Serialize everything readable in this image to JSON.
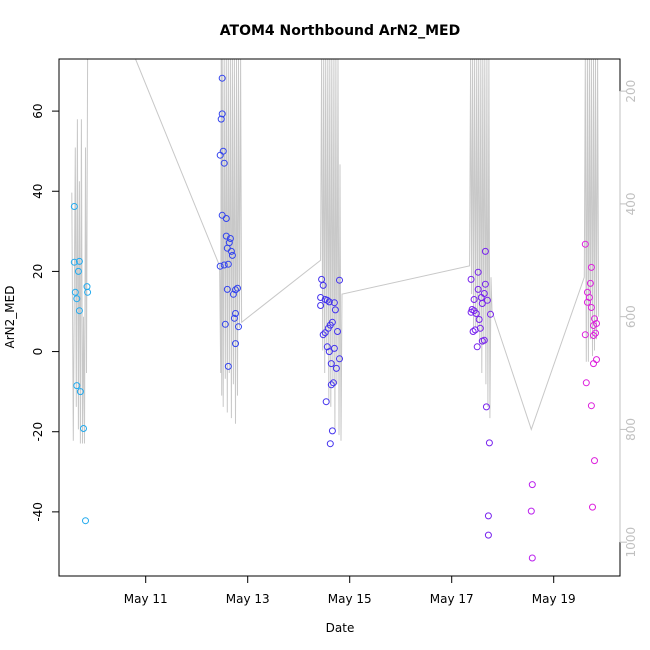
{
  "chart_data": {
    "type": "scatter",
    "title": "ATOM4 Northbound ArN2_MED",
    "xlabel": "Date",
    "ylabel": "ArN2_MED",
    "xlim": [
      9.3,
      20.3
    ],
    "ylim": [
      -56,
      73
    ],
    "y_ticks": [
      -40,
      -20,
      0,
      20,
      40,
      60
    ],
    "x_ticks": [
      {
        "value": 11,
        "label": "May 11"
      },
      {
        "value": 13,
        "label": "May 13"
      },
      {
        "value": 15,
        "label": "May 15"
      },
      {
        "value": 17,
        "label": "May 17"
      },
      {
        "value": 19,
        "label": "May 19"
      }
    ],
    "secondary_axis": {
      "side": "right",
      "color": "#c0c0c0",
      "ylim": [
        1060,
        143
      ],
      "ticks": [
        200,
        400,
        600,
        800,
        1000
      ],
      "series_color": "#c8c8c8"
    },
    "points": [
      {
        "x": 9.6,
        "y": 36.2,
        "color": "#22aaee"
      },
      {
        "x": 9.6,
        "y": 22.3,
        "color": "#22aaee"
      },
      {
        "x": 9.62,
        "y": 14.8,
        "color": "#22aaee"
      },
      {
        "x": 9.65,
        "y": 13.2,
        "color": "#22aaee"
      },
      {
        "x": 9.68,
        "y": 20.0,
        "color": "#22aaee"
      },
      {
        "x": 9.7,
        "y": 22.5,
        "color": "#22aaee"
      },
      {
        "x": 9.7,
        "y": 10.2,
        "color": "#22aaee"
      },
      {
        "x": 9.65,
        "y": -8.5,
        "color": "#22aaee"
      },
      {
        "x": 9.72,
        "y": -10.0,
        "color": "#22aaee"
      },
      {
        "x": 9.78,
        "y": -19.2,
        "color": "#22aaee"
      },
      {
        "x": 9.85,
        "y": 16.2,
        "color": "#22aaee"
      },
      {
        "x": 9.86,
        "y": 14.8,
        "color": "#22aaee"
      },
      {
        "x": 9.82,
        "y": -42.2,
        "color": "#22aaee"
      },
      {
        "x": 12.5,
        "y": 68.2,
        "color": "#3344ee"
      },
      {
        "x": 12.5,
        "y": 59.3,
        "color": "#3344ee"
      },
      {
        "x": 12.48,
        "y": 58.0,
        "color": "#3344ee"
      },
      {
        "x": 12.52,
        "y": 50.0,
        "color": "#3344ee"
      },
      {
        "x": 12.46,
        "y": 49.0,
        "color": "#3344ee"
      },
      {
        "x": 12.54,
        "y": 47.0,
        "color": "#3344ee"
      },
      {
        "x": 12.5,
        "y": 34.0,
        "color": "#3344ee"
      },
      {
        "x": 12.58,
        "y": 33.2,
        "color": "#3344ee"
      },
      {
        "x": 12.58,
        "y": 28.8,
        "color": "#3344ee"
      },
      {
        "x": 12.66,
        "y": 28.2,
        "color": "#3344ee"
      },
      {
        "x": 12.64,
        "y": 27.2,
        "color": "#3344ee"
      },
      {
        "x": 12.6,
        "y": 25.8,
        "color": "#3344ee"
      },
      {
        "x": 12.68,
        "y": 25.0,
        "color": "#3344ee"
      },
      {
        "x": 12.7,
        "y": 24.0,
        "color": "#3344ee"
      },
      {
        "x": 12.46,
        "y": 21.3,
        "color": "#3344ee"
      },
      {
        "x": 12.54,
        "y": 21.6,
        "color": "#3344ee"
      },
      {
        "x": 12.62,
        "y": 21.8,
        "color": "#3344ee"
      },
      {
        "x": 12.6,
        "y": 15.5,
        "color": "#3344ee"
      },
      {
        "x": 12.76,
        "y": 15.4,
        "color": "#3344ee"
      },
      {
        "x": 12.8,
        "y": 15.8,
        "color": "#3344ee"
      },
      {
        "x": 12.72,
        "y": 14.3,
        "color": "#3344ee"
      },
      {
        "x": 12.76,
        "y": 9.5,
        "color": "#3344ee"
      },
      {
        "x": 12.74,
        "y": 8.3,
        "color": "#3344ee"
      },
      {
        "x": 12.56,
        "y": 6.8,
        "color": "#3344ee"
      },
      {
        "x": 12.82,
        "y": 6.2,
        "color": "#3344ee"
      },
      {
        "x": 12.76,
        "y": 2.0,
        "color": "#3344ee"
      },
      {
        "x": 12.62,
        "y": -3.7,
        "color": "#3344ee"
      },
      {
        "x": 14.45,
        "y": 18.0,
        "color": "#4433ee"
      },
      {
        "x": 14.48,
        "y": 16.5,
        "color": "#4433ee"
      },
      {
        "x": 14.8,
        "y": 17.8,
        "color": "#4433ee"
      },
      {
        "x": 14.43,
        "y": 13.5,
        "color": "#4433ee"
      },
      {
        "x": 14.52,
        "y": 13.0,
        "color": "#4433ee"
      },
      {
        "x": 14.56,
        "y": 12.8,
        "color": "#4433ee"
      },
      {
        "x": 14.6,
        "y": 12.4,
        "color": "#4433ee"
      },
      {
        "x": 14.7,
        "y": 12.2,
        "color": "#4433ee"
      },
      {
        "x": 14.43,
        "y": 11.5,
        "color": "#4433ee"
      },
      {
        "x": 14.72,
        "y": 10.4,
        "color": "#4433ee"
      },
      {
        "x": 14.66,
        "y": 7.3,
        "color": "#4433ee"
      },
      {
        "x": 14.62,
        "y": 6.6,
        "color": "#4433ee"
      },
      {
        "x": 14.58,
        "y": 5.8,
        "color": "#4433ee"
      },
      {
        "x": 14.52,
        "y": 4.7,
        "color": "#4433ee"
      },
      {
        "x": 14.48,
        "y": 4.2,
        "color": "#4433ee"
      },
      {
        "x": 14.76,
        "y": 5.0,
        "color": "#4433ee"
      },
      {
        "x": 14.56,
        "y": 1.2,
        "color": "#4433ee"
      },
      {
        "x": 14.6,
        "y": 0.0,
        "color": "#4433ee"
      },
      {
        "x": 14.7,
        "y": 0.8,
        "color": "#4433ee"
      },
      {
        "x": 14.8,
        "y": -1.8,
        "color": "#4433ee"
      },
      {
        "x": 14.64,
        "y": -3.0,
        "color": "#4433ee"
      },
      {
        "x": 14.74,
        "y": -4.2,
        "color": "#4433ee"
      },
      {
        "x": 14.68,
        "y": -7.8,
        "color": "#4433ee"
      },
      {
        "x": 14.64,
        "y": -8.3,
        "color": "#4433ee"
      },
      {
        "x": 14.54,
        "y": -12.5,
        "color": "#4433ee"
      },
      {
        "x": 14.66,
        "y": -19.8,
        "color": "#4433ee"
      },
      {
        "x": 14.62,
        "y": -23.0,
        "color": "#4433ee"
      },
      {
        "x": 17.66,
        "y": 25.0,
        "color": "#7722ee"
      },
      {
        "x": 17.52,
        "y": 19.8,
        "color": "#7722ee"
      },
      {
        "x": 17.38,
        "y": 18.0,
        "color": "#7722ee"
      },
      {
        "x": 17.66,
        "y": 16.8,
        "color": "#7722ee"
      },
      {
        "x": 17.52,
        "y": 15.5,
        "color": "#7722ee"
      },
      {
        "x": 17.64,
        "y": 14.5,
        "color": "#7722ee"
      },
      {
        "x": 17.58,
        "y": 13.5,
        "color": "#7722ee"
      },
      {
        "x": 17.44,
        "y": 13.0,
        "color": "#7722ee"
      },
      {
        "x": 17.7,
        "y": 12.8,
        "color": "#7722ee"
      },
      {
        "x": 17.6,
        "y": 12.0,
        "color": "#7722ee"
      },
      {
        "x": 17.4,
        "y": 10.5,
        "color": "#7722ee"
      },
      {
        "x": 17.44,
        "y": 10.2,
        "color": "#7722ee"
      },
      {
        "x": 17.38,
        "y": 9.8,
        "color": "#7722ee"
      },
      {
        "x": 17.48,
        "y": 9.5,
        "color": "#7722ee"
      },
      {
        "x": 17.54,
        "y": 8.0,
        "color": "#7722ee"
      },
      {
        "x": 17.76,
        "y": 9.3,
        "color": "#7722ee"
      },
      {
        "x": 17.56,
        "y": 5.8,
        "color": "#7722ee"
      },
      {
        "x": 17.42,
        "y": 5.0,
        "color": "#7722ee"
      },
      {
        "x": 17.46,
        "y": 5.4,
        "color": "#7722ee"
      },
      {
        "x": 17.64,
        "y": 2.8,
        "color": "#7722ee"
      },
      {
        "x": 17.6,
        "y": 2.6,
        "color": "#7722ee"
      },
      {
        "x": 17.5,
        "y": 1.2,
        "color": "#7722ee"
      },
      {
        "x": 17.68,
        "y": -13.8,
        "color": "#7722ee"
      },
      {
        "x": 17.74,
        "y": -22.8,
        "color": "#7722ee"
      },
      {
        "x": 17.72,
        "y": -41.0,
        "color": "#7722ee"
      },
      {
        "x": 17.72,
        "y": -45.8,
        "color": "#7722ee"
      },
      {
        "x": 18.58,
        "y": -33.2,
        "color": "#bb22ee"
      },
      {
        "x": 18.56,
        "y": -39.8,
        "color": "#bb22ee"
      },
      {
        "x": 18.58,
        "y": -51.5,
        "color": "#bb22ee"
      },
      {
        "x": 19.62,
        "y": 26.8,
        "color": "#dd22dd"
      },
      {
        "x": 19.74,
        "y": 21.0,
        "color": "#dd22dd"
      },
      {
        "x": 19.72,
        "y": 17.0,
        "color": "#dd22dd"
      },
      {
        "x": 19.66,
        "y": 14.8,
        "color": "#dd22dd"
      },
      {
        "x": 19.7,
        "y": 13.5,
        "color": "#dd22dd"
      },
      {
        "x": 19.66,
        "y": 12.3,
        "color": "#dd22dd"
      },
      {
        "x": 19.74,
        "y": 11.0,
        "color": "#dd22dd"
      },
      {
        "x": 19.8,
        "y": 8.2,
        "color": "#dd22dd"
      },
      {
        "x": 19.84,
        "y": 7.0,
        "color": "#dd22dd"
      },
      {
        "x": 19.78,
        "y": 6.5,
        "color": "#dd22dd"
      },
      {
        "x": 19.82,
        "y": 4.6,
        "color": "#dd22dd"
      },
      {
        "x": 19.78,
        "y": 4.0,
        "color": "#dd22dd"
      },
      {
        "x": 19.62,
        "y": 4.2,
        "color": "#dd22dd"
      },
      {
        "x": 19.84,
        "y": -2.0,
        "color": "#dd22dd"
      },
      {
        "x": 19.78,
        "y": -3.0,
        "color": "#dd22dd"
      },
      {
        "x": 19.64,
        "y": -7.8,
        "color": "#dd22dd"
      },
      {
        "x": 19.74,
        "y": -13.5,
        "color": "#dd22dd"
      },
      {
        "x": 19.8,
        "y": -27.2,
        "color": "#dd22dd"
      },
      {
        "x": 19.76,
        "y": -38.8,
        "color": "#dd22dd"
      }
    ],
    "line_series": [
      [
        [
          9.55,
          380
        ],
        [
          9.58,
          820
        ],
        [
          9.62,
          300
        ],
        [
          9.64,
          760
        ],
        [
          9.66,
          250
        ],
        [
          9.68,
          800
        ],
        [
          9.7,
          360
        ],
        [
          9.72,
          825
        ],
        [
          9.74,
          250
        ],
        [
          9.76,
          825
        ],
        [
          9.78,
          600
        ],
        [
          9.8,
          825
        ],
        [
          9.82,
          300
        ],
        [
          9.84,
          700
        ],
        [
          9.86,
          143
        ],
        [
          9.88,
          143
        ],
        [
          9.88,
          143
        ],
        [
          10.8,
          143
        ],
        [
          12.45,
          510
        ],
        [
          12.47,
          700
        ],
        [
          12.48,
          143
        ],
        [
          12.49,
          740
        ],
        [
          12.5,
          143
        ],
        [
          12.52,
          760
        ],
        [
          12.54,
          143
        ],
        [
          12.56,
          710
        ],
        [
          12.58,
          143
        ],
        [
          12.6,
          770
        ],
        [
          12.62,
          143
        ],
        [
          12.64,
          700
        ],
        [
          12.66,
          143
        ],
        [
          12.68,
          780
        ],
        [
          12.7,
          143
        ],
        [
          12.72,
          720
        ],
        [
          12.74,
          143
        ],
        [
          12.76,
          790
        ],
        [
          12.78,
          143
        ],
        [
          12.8,
          740
        ],
        [
          12.82,
          143
        ],
        [
          12.84,
          620
        ],
        [
          12.86,
          143
        ],
        [
          12.88,
          610
        ],
        [
          12.88,
          610
        ],
        [
          14.43,
          500
        ],
        [
          14.45,
          143
        ],
        [
          14.47,
          660
        ],
        [
          14.49,
          143
        ],
        [
          14.51,
          700
        ],
        [
          14.53,
          143
        ],
        [
          14.55,
          660
        ],
        [
          14.57,
          143
        ],
        [
          14.59,
          750
        ],
        [
          14.61,
          143
        ],
        [
          14.63,
          760
        ],
        [
          14.65,
          143
        ],
        [
          14.67,
          720
        ],
        [
          14.69,
          143
        ],
        [
          14.71,
          800
        ],
        [
          14.73,
          143
        ],
        [
          14.75,
          720
        ],
        [
          14.77,
          143
        ],
        [
          14.79,
          810
        ],
        [
          14.81,
          330
        ],
        [
          14.83,
          820
        ],
        [
          14.85,
          560
        ],
        [
          17.35,
          510
        ],
        [
          17.37,
          143
        ],
        [
          17.39,
          560
        ],
        [
          17.41,
          143
        ],
        [
          17.43,
          620
        ],
        [
          17.45,
          143
        ],
        [
          17.47,
          620
        ],
        [
          17.49,
          143
        ],
        [
          17.51,
          620
        ],
        [
          17.53,
          143
        ],
        [
          17.55,
          650
        ],
        [
          17.57,
          143
        ],
        [
          17.59,
          700
        ],
        [
          17.61,
          143
        ],
        [
          17.63,
          650
        ],
        [
          17.65,
          143
        ],
        [
          17.67,
          720
        ],
        [
          17.69,
          143
        ],
        [
          17.71,
          760
        ],
        [
          17.73,
          143
        ],
        [
          17.75,
          780
        ],
        [
          17.77,
          530
        ],
        [
          17.79,
          590
        ],
        [
          18.56,
          800
        ],
        [
          19.6,
          530
        ],
        [
          19.62,
          143
        ],
        [
          19.64,
          680
        ],
        [
          19.66,
          143
        ],
        [
          19.68,
          680
        ],
        [
          19.7,
          143
        ],
        [
          19.72,
          640
        ],
        [
          19.74,
          143
        ],
        [
          19.76,
          670
        ],
        [
          19.78,
          143
        ],
        [
          19.8,
          660
        ],
        [
          19.82,
          143
        ],
        [
          19.84,
          640
        ],
        [
          19.86,
          143
        ],
        [
          19.88,
          600
        ]
      ]
    ]
  }
}
